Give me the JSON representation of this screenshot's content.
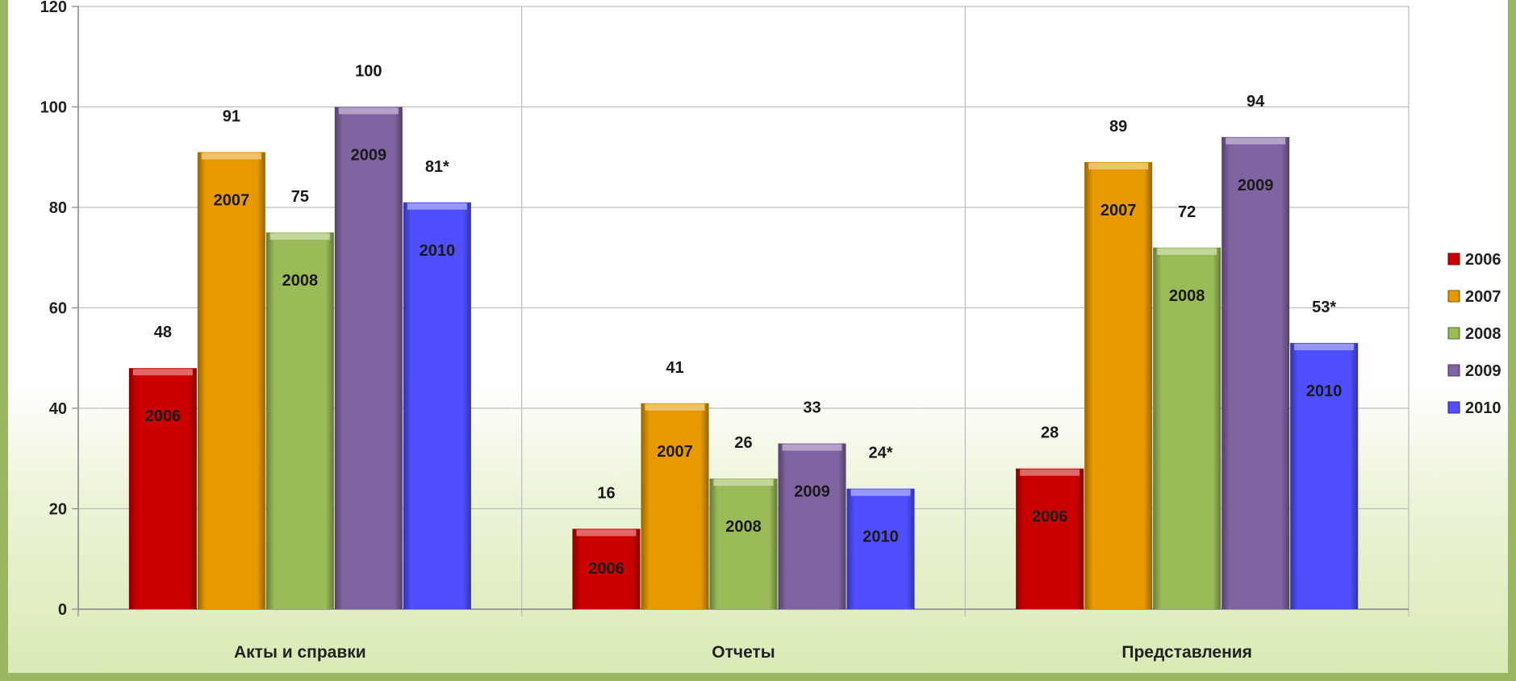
{
  "chart_data": {
    "type": "bar",
    "title": "",
    "xlabel": "",
    "ylabel": "",
    "ylim": [
      0,
      120
    ],
    "yticks": [
      "0",
      "20",
      "40",
      "60",
      "80",
      "100",
      "120"
    ],
    "grid": true,
    "legend_position": "right",
    "categories": [
      "Акты и справки",
      "Отчеты",
      "Представления"
    ],
    "series": [
      {
        "name": "2006",
        "color": "#cc0000",
        "values": [
          48,
          16,
          28
        ],
        "value_labels": [
          "48",
          "16",
          "28"
        ]
      },
      {
        "name": "2007",
        "color": "#e69a00",
        "values": [
          91,
          41,
          89
        ],
        "value_labels": [
          "91",
          "41",
          "89"
        ]
      },
      {
        "name": "2008",
        "color": "#9bbb59",
        "values": [
          75,
          26,
          72
        ],
        "value_labels": [
          "75",
          "26",
          "72"
        ]
      },
      {
        "name": "2009",
        "color": "#8064a2",
        "values": [
          100,
          33,
          94
        ],
        "value_labels": [
          "100",
          "33",
          "94"
        ]
      },
      {
        "name": "2010",
        "color": "#4f4fff",
        "values": [
          81,
          24,
          53
        ],
        "value_labels": [
          "81*",
          "24*",
          "53*"
        ]
      }
    ]
  }
}
